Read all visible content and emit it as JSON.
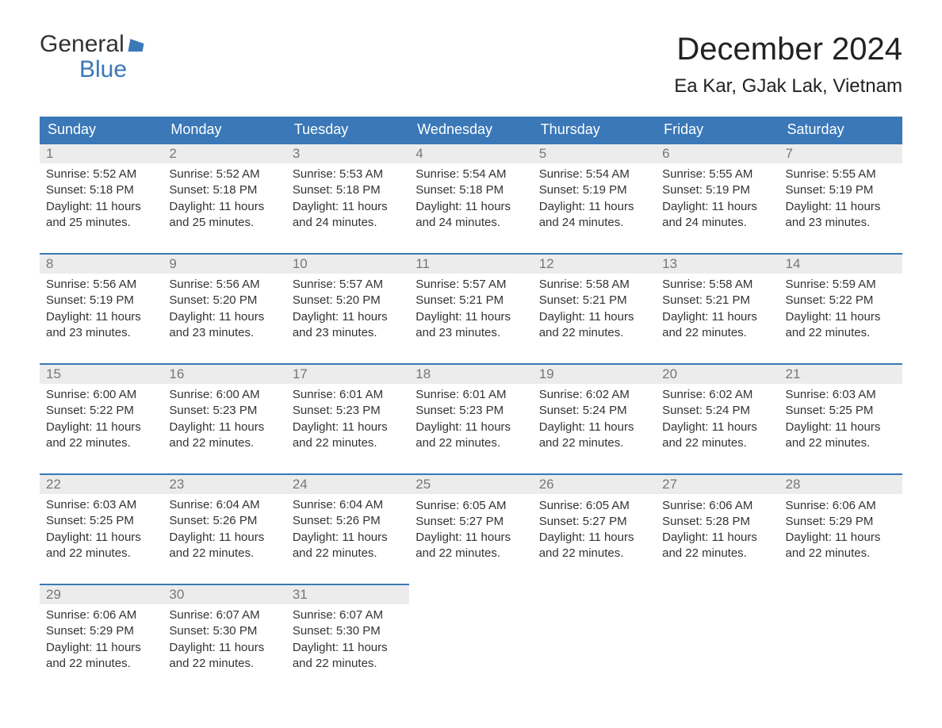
{
  "logo": {
    "word1": "General",
    "word2": "Blue"
  },
  "title": "December 2024",
  "location": "Ea Kar, GJak Lak, Vietnam",
  "colors": {
    "header_bg": "#3a78b8",
    "header_text": "#ffffff",
    "daynum_bg": "#ececec",
    "daynum_text": "#777777",
    "row_border": "#3a78b8",
    "body_text": "#333333",
    "page_bg": "#ffffff",
    "logo_accent": "#3a78b8"
  },
  "day_headers": [
    "Sunday",
    "Monday",
    "Tuesday",
    "Wednesday",
    "Thursday",
    "Friday",
    "Saturday"
  ],
  "weeks": [
    [
      {
        "n": "1",
        "sr": "5:52 AM",
        "ss": "5:18 PM",
        "dl": "11 hours and 25 minutes."
      },
      {
        "n": "2",
        "sr": "5:52 AM",
        "ss": "5:18 PM",
        "dl": "11 hours and 25 minutes."
      },
      {
        "n": "3",
        "sr": "5:53 AM",
        "ss": "5:18 PM",
        "dl": "11 hours and 24 minutes."
      },
      {
        "n": "4",
        "sr": "5:54 AM",
        "ss": "5:18 PM",
        "dl": "11 hours and 24 minutes."
      },
      {
        "n": "5",
        "sr": "5:54 AM",
        "ss": "5:19 PM",
        "dl": "11 hours and 24 minutes."
      },
      {
        "n": "6",
        "sr": "5:55 AM",
        "ss": "5:19 PM",
        "dl": "11 hours and 24 minutes."
      },
      {
        "n": "7",
        "sr": "5:55 AM",
        "ss": "5:19 PM",
        "dl": "11 hours and 23 minutes."
      }
    ],
    [
      {
        "n": "8",
        "sr": "5:56 AM",
        "ss": "5:19 PM",
        "dl": "11 hours and 23 minutes."
      },
      {
        "n": "9",
        "sr": "5:56 AM",
        "ss": "5:20 PM",
        "dl": "11 hours and 23 minutes."
      },
      {
        "n": "10",
        "sr": "5:57 AM",
        "ss": "5:20 PM",
        "dl": "11 hours and 23 minutes."
      },
      {
        "n": "11",
        "sr": "5:57 AM",
        "ss": "5:21 PM",
        "dl": "11 hours and 23 minutes."
      },
      {
        "n": "12",
        "sr": "5:58 AM",
        "ss": "5:21 PM",
        "dl": "11 hours and 22 minutes."
      },
      {
        "n": "13",
        "sr": "5:58 AM",
        "ss": "5:21 PM",
        "dl": "11 hours and 22 minutes."
      },
      {
        "n": "14",
        "sr": "5:59 AM",
        "ss": "5:22 PM",
        "dl": "11 hours and 22 minutes."
      }
    ],
    [
      {
        "n": "15",
        "sr": "6:00 AM",
        "ss": "5:22 PM",
        "dl": "11 hours and 22 minutes."
      },
      {
        "n": "16",
        "sr": "6:00 AM",
        "ss": "5:23 PM",
        "dl": "11 hours and 22 minutes."
      },
      {
        "n": "17",
        "sr": "6:01 AM",
        "ss": "5:23 PM",
        "dl": "11 hours and 22 minutes."
      },
      {
        "n": "18",
        "sr": "6:01 AM",
        "ss": "5:23 PM",
        "dl": "11 hours and 22 minutes."
      },
      {
        "n": "19",
        "sr": "6:02 AM",
        "ss": "5:24 PM",
        "dl": "11 hours and 22 minutes."
      },
      {
        "n": "20",
        "sr": "6:02 AM",
        "ss": "5:24 PM",
        "dl": "11 hours and 22 minutes."
      },
      {
        "n": "21",
        "sr": "6:03 AM",
        "ss": "5:25 PM",
        "dl": "11 hours and 22 minutes."
      }
    ],
    [
      {
        "n": "22",
        "sr": "6:03 AM",
        "ss": "5:25 PM",
        "dl": "11 hours and 22 minutes."
      },
      {
        "n": "23",
        "sr": "6:04 AM",
        "ss": "5:26 PM",
        "dl": "11 hours and 22 minutes."
      },
      {
        "n": "24",
        "sr": "6:04 AM",
        "ss": "5:26 PM",
        "dl": "11 hours and 22 minutes."
      },
      {
        "n": "25",
        "sr": "6:05 AM",
        "ss": "5:27 PM",
        "dl": "11 hours and 22 minutes."
      },
      {
        "n": "26",
        "sr": "6:05 AM",
        "ss": "5:27 PM",
        "dl": "11 hours and 22 minutes."
      },
      {
        "n": "27",
        "sr": "6:06 AM",
        "ss": "5:28 PM",
        "dl": "11 hours and 22 minutes."
      },
      {
        "n": "28",
        "sr": "6:06 AM",
        "ss": "5:29 PM",
        "dl": "11 hours and 22 minutes."
      }
    ],
    [
      {
        "n": "29",
        "sr": "6:06 AM",
        "ss": "5:29 PM",
        "dl": "11 hours and 22 minutes."
      },
      {
        "n": "30",
        "sr": "6:07 AM",
        "ss": "5:30 PM",
        "dl": "11 hours and 22 minutes."
      },
      {
        "n": "31",
        "sr": "6:07 AM",
        "ss": "5:30 PM",
        "dl": "11 hours and 22 minutes."
      },
      null,
      null,
      null,
      null
    ]
  ],
  "labels": {
    "sunrise": "Sunrise: ",
    "sunset": "Sunset: ",
    "daylight": "Daylight: "
  }
}
